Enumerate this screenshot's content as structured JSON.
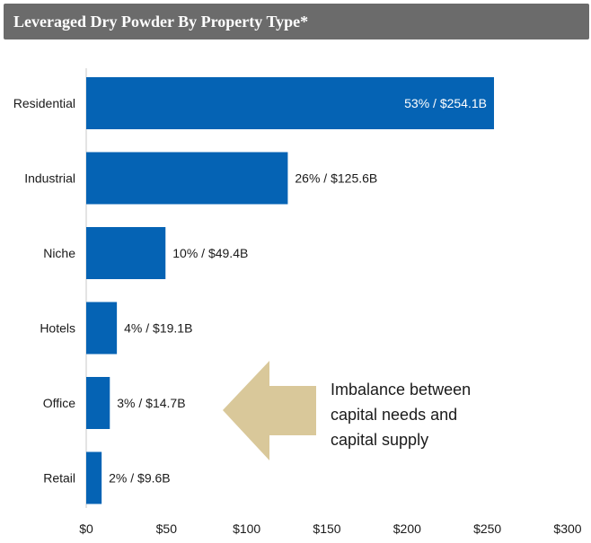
{
  "header": {
    "title": "Leveraged Dry Powder By Property Type*"
  },
  "annotation": {
    "lines": [
      "Imbalance between",
      "capital needs and",
      "capital supply"
    ],
    "arrow_color": "#d9c89a"
  },
  "chart_data": {
    "type": "bar",
    "orientation": "horizontal",
    "title": "",
    "xlabel": "",
    "ylabel": "",
    "categories": [
      "Residential",
      "Industrial",
      "Niche",
      "Hotels",
      "Office",
      "Retail"
    ],
    "values": [
      254.1,
      125.6,
      49.4,
      19.1,
      14.7,
      9.6
    ],
    "shares": [
      "53%",
      "26%",
      "10%",
      "4%",
      "3%",
      "2%"
    ],
    "data_labels": [
      "53% / $254.1B",
      "26% / $125.6B",
      "10% / $49.4B",
      "4% / $19.1B",
      "3% / $14.7B",
      "2% / $9.6B"
    ],
    "xlim": [
      0,
      300
    ],
    "x_ticks": [
      0,
      50,
      100,
      150,
      200,
      250,
      300
    ],
    "x_tick_labels": [
      "$0",
      "$50",
      "$100",
      "$150",
      "$200",
      "$250",
      "$300"
    ],
    "bar_color": "#0563b4",
    "grid": false,
    "legend": "none"
  }
}
